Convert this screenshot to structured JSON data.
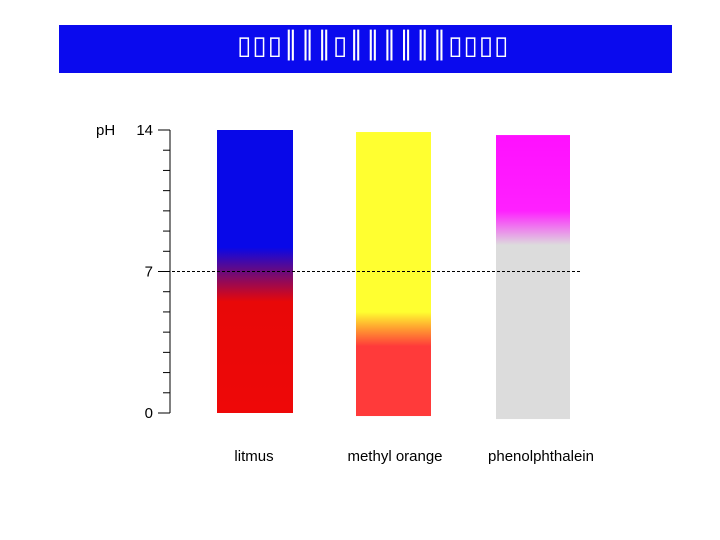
{
  "title": "▯▯▯║║║▯║║║║║║▯▯▯▯",
  "chart_data": {
    "type": "bar",
    "ylabel": "pH",
    "ylim": [
      0,
      14
    ],
    "y_tick_labels": [
      "14",
      "7",
      "0"
    ],
    "y_tick_values": [
      14,
      7,
      0
    ],
    "minor_tick_step": 1,
    "reference_line": 7,
    "categories": [
      "litmus",
      "methyl orange",
      "phenolphthalein"
    ],
    "bars": [
      {
        "name": "litmus",
        "top": 14,
        "bottom": 0,
        "gradient": [
          {
            "ph": 14,
            "color": "#0808e8"
          },
          {
            "ph": 8.2,
            "color": "#0808e8"
          },
          {
            "ph": 7.0,
            "color": "#6a0a7e"
          },
          {
            "ph": 5.5,
            "color": "#e80808"
          },
          {
            "ph": 0,
            "color": "#ee0808"
          }
        ]
      },
      {
        "name": "methyl orange",
        "top": 13.9,
        "bottom": -0.15,
        "gradient": [
          {
            "ph": 13.9,
            "color": "#ffff30"
          },
          {
            "ph": 5.0,
            "color": "#ffff30"
          },
          {
            "ph": 4.2,
            "color": "#ffa030"
          },
          {
            "ph": 3.3,
            "color": "#ff3a3a"
          },
          {
            "ph": -0.15,
            "color": "#ff3a3a"
          }
        ]
      },
      {
        "name": "phenolphthalein",
        "top": 13.75,
        "bottom": -0.3,
        "gradient": [
          {
            "ph": 13.75,
            "color": "#ff10ff"
          },
          {
            "ph": 10.0,
            "color": "#ff20ff"
          },
          {
            "ph": 8.3,
            "color": "#dcdcdc"
          },
          {
            "ph": -0.3,
            "color": "#dcdcdc"
          }
        ]
      }
    ]
  }
}
